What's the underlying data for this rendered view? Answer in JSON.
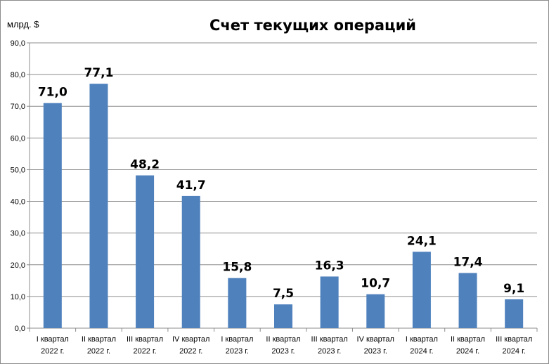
{
  "chart_data": {
    "type": "bar",
    "title": "Счет текущих операций",
    "ylabel": "млрд. $",
    "xlabel": "",
    "ylim": [
      0,
      90
    ],
    "ytick_step": 10,
    "ytick_labels": [
      "0,0",
      "10,0",
      "20,0",
      "30,0",
      "40,0",
      "50,0",
      "60,0",
      "70,0",
      "80,0",
      "90,0"
    ],
    "grid": true,
    "legend": "none",
    "bar_color": "#4f81bd",
    "categories": [
      [
        "I квартал",
        "2022 г."
      ],
      [
        "II квартал",
        "2022 г."
      ],
      [
        "III квартал",
        "2022 г."
      ],
      [
        "IV квартал",
        "2022 г."
      ],
      [
        "I квартал",
        "2023 г."
      ],
      [
        "II квартал",
        "2023 г."
      ],
      [
        "III квартал",
        "2023 г."
      ],
      [
        "IV квартал",
        "2023 г."
      ],
      [
        "I квартал",
        "2024 г."
      ],
      [
        "II квартал",
        "2024 г."
      ],
      [
        "III квартал",
        "2024 г."
      ]
    ],
    "values": [
      71.0,
      77.1,
      48.2,
      41.7,
      15.8,
      7.5,
      16.3,
      10.7,
      24.1,
      17.4,
      9.1
    ],
    "data_labels": [
      "71,0",
      "77,1",
      "48,2",
      "41,7",
      "15,8",
      "7,5",
      "16,3",
      "10,7",
      "24,1",
      "17,4",
      "9,1"
    ]
  }
}
